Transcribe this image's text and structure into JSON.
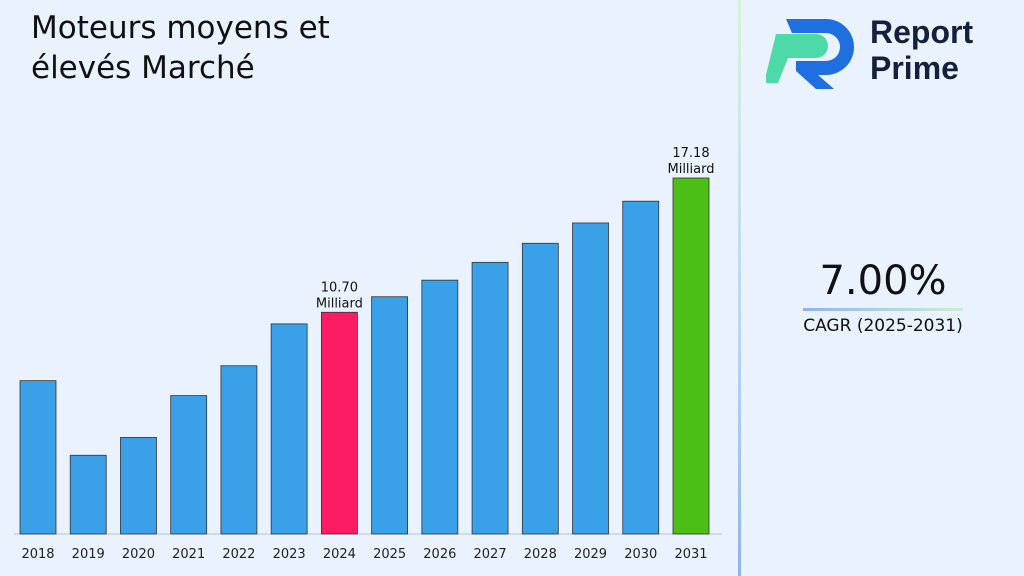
{
  "title": "Moteurs moyens et élevés Marché",
  "brand": {
    "line1": "Report",
    "line2": "Prime"
  },
  "cagr": {
    "value": "7.00%",
    "label": "CAGR (2025-2031)"
  },
  "colors": {
    "default": "#3aa0e8",
    "highlight_2024": "#fc1c64",
    "highlight_2031": "#4cbf16"
  },
  "chart_data": {
    "type": "bar",
    "title": "Moteurs moyens et élevés Marché",
    "categories": [
      "2018",
      "2019",
      "2020",
      "2021",
      "2022",
      "2023",
      "2024",
      "2025",
      "2026",
      "2027",
      "2028",
      "2029",
      "2030",
      "2031"
    ],
    "values": [
      7.4,
      3.8,
      4.66,
      6.68,
      8.12,
      10.14,
      10.7,
      11.45,
      12.25,
      13.11,
      14.03,
      15.01,
      16.06,
      17.18
    ],
    "unit": "Milliard",
    "data_labels": [
      {
        "category": "2024",
        "text": "10.70",
        "unit": "Milliard"
      },
      {
        "category": "2031",
        "text": "17.18",
        "unit": "Milliard"
      }
    ],
    "grid": false,
    "xlabel": "",
    "ylabel": ""
  }
}
